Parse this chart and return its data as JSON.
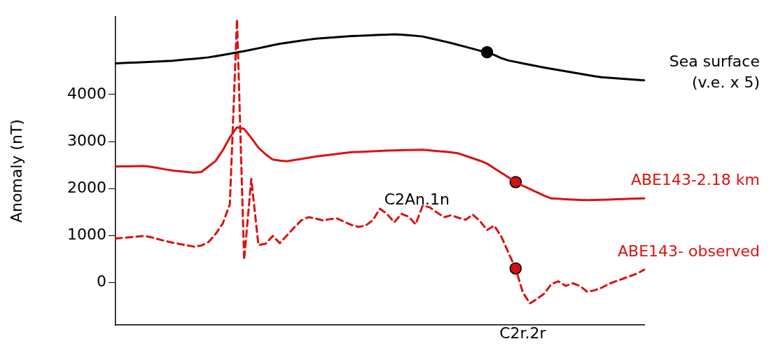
{
  "chart_data": {
    "type": "line",
    "ylabel": "Anomaly (nT)",
    "categories": [
      null,
      null,
      null,
      null,
      null,
      null,
      null,
      null,
      null,
      null,
      null,
      null,
      null,
      null,
      null,
      null,
      null,
      null,
      null,
      null,
      null,
      null,
      null,
      null,
      null,
      null,
      null,
      null,
      null,
      null,
      null,
      null,
      null,
      null,
      null,
      null,
      null,
      null,
      null,
      null,
      null,
      null,
      null,
      null,
      null,
      null,
      null,
      null,
      null,
      null,
      null,
      null,
      null,
      null,
      null,
      null,
      null,
      null,
      null,
      null,
      null,
      null,
      null,
      null,
      null,
      null,
      null,
      null,
      null,
      null,
      null,
      null,
      null,
      null,
      null
    ],
    "ylim": [
      -900,
      5650
    ],
    "yticks": [
      0,
      1000,
      2000,
      3000,
      4000
    ],
    "tick_labels": "y",
    "grid": false,
    "legend": false,
    "series": [
      {
        "name": "Sea surface (v.e. x 5)",
        "type": "line",
        "color": "#000000",
        "line_style": "solid",
        "values": [
          4662,
          4669,
          4676,
          4683,
          4690,
          4697,
          4703,
          4710,
          4719,
          4733,
          4747,
          4760,
          4774,
          4791,
          4815,
          4842,
          4868,
          4896,
          4922,
          4953,
          4985,
          5017,
          5050,
          5079,
          5102,
          5123,
          5145,
          5167,
          5188,
          5199,
          5210,
          5221,
          5232,
          5242,
          5249,
          5255,
          5261,
          5268,
          5273,
          5280,
          5273,
          5261,
          5249,
          5234,
          5199,
          5165,
          5130,
          5094,
          5054,
          5014,
          4974,
          4932,
          4901,
          4844,
          4774,
          4724,
          4694,
          4664,
          4633,
          4604,
          4574,
          4546,
          4521,
          4496,
          4469,
          4444,
          4418,
          4392,
          4370,
          4359,
          4347,
          4334,
          4323,
          4312,
          4303
        ]
      },
      {
        "name": "ABE143-2.18 km",
        "type": "line",
        "color": "#dd1111",
        "line_style": "solid",
        "values": [
          2469,
          2472,
          2475,
          2478,
          2482,
          2463,
          2435,
          2408,
          2383,
          2369,
          2355,
          2341,
          2354,
          2469,
          2586,
          2813,
          3089,
          3304,
          3269,
          3079,
          2868,
          2730,
          2617,
          2596,
          2582,
          2607,
          2631,
          2657,
          2681,
          2700,
          2718,
          2737,
          2757,
          2774,
          2780,
          2787,
          2794,
          2801,
          2808,
          2813,
          2817,
          2820,
          2824,
          2826,
          2812,
          2799,
          2785,
          2770,
          2748,
          2697,
          2645,
          2593,
          2531,
          2433,
          2336,
          2237,
          2139,
          2060,
          1990,
          1920,
          1849,
          1791,
          1783,
          1774,
          1766,
          1758,
          1753,
          1757,
          1762,
          1767,
          1772,
          1777,
          1783,
          1788,
          1793
        ]
      },
      {
        "name": "ABE143- observed",
        "type": "line",
        "color": "#dd1111",
        "line_style": "dashed",
        "values": [
          938,
          952,
          966,
          979,
          993,
          966,
          924,
          883,
          849,
          821,
          794,
          766,
          790,
          862,
          1034,
          1255,
          1669,
          5600,
          483,
          2207,
          800,
          828,
          993,
          841,
          1007,
          1172,
          1324,
          1393,
          1365,
          1324,
          1351,
          1365,
          1296,
          1227,
          1186,
          1214,
          1324,
          1572,
          1462,
          1282,
          1462,
          1407,
          1241,
          1641,
          1600,
          1490,
          1393,
          1434,
          1379,
          1338,
          1448,
          1310,
          1117,
          1214,
          979,
          634,
          303,
          -207,
          -441,
          -345,
          -234,
          -28,
          28,
          -69,
          -14,
          -69,
          -193,
          -165,
          -110,
          -28,
          28,
          83,
          138,
          193,
          276
        ]
      },
      {
        "type": "scatter",
        "marker": "circle",
        "color": "#000000",
        "values": [
          null,
          null,
          null,
          null,
          null,
          null,
          null,
          null,
          null,
          null,
          null,
          null,
          null,
          null,
          null,
          null,
          null,
          null,
          null,
          null,
          null,
          null,
          null,
          null,
          null,
          null,
          null,
          null,
          null,
          null,
          null,
          null,
          null,
          null,
          null,
          null,
          null,
          null,
          null,
          null,
          null,
          null,
          null,
          null,
          null,
          null,
          null,
          null,
          null,
          null,
          null,
          null,
          4901,
          null,
          null,
          null,
          null,
          null,
          null,
          null,
          null,
          null,
          null,
          null,
          null,
          null,
          null,
          null,
          null,
          null,
          null,
          null,
          null,
          null,
          null
        ]
      },
      {
        "type": "scatter",
        "marker": "circle",
        "color": "#cc1111",
        "values": [
          null,
          null,
          null,
          null,
          null,
          null,
          null,
          null,
          null,
          null,
          null,
          null,
          null,
          null,
          null,
          null,
          null,
          null,
          null,
          null,
          null,
          null,
          null,
          null,
          null,
          null,
          null,
          null,
          null,
          null,
          null,
          null,
          null,
          null,
          null,
          null,
          null,
          null,
          null,
          null,
          null,
          null,
          null,
          null,
          null,
          null,
          null,
          null,
          null,
          null,
          null,
          null,
          null,
          null,
          null,
          null,
          2139,
          null,
          null,
          null,
          null,
          null,
          null,
          null,
          null,
          null,
          null,
          null,
          null,
          null,
          null,
          null,
          null,
          null,
          null
        ]
      },
      {
        "type": "scatter",
        "marker": "circle",
        "color": "#cc1111",
        "values": [
          null,
          null,
          null,
          null,
          null,
          null,
          null,
          null,
          null,
          null,
          null,
          null,
          null,
          null,
          null,
          null,
          null,
          null,
          null,
          null,
          null,
          null,
          null,
          null,
          null,
          null,
          null,
          null,
          null,
          null,
          null,
          null,
          null,
          null,
          null,
          null,
          null,
          null,
          null,
          null,
          null,
          null,
          null,
          null,
          null,
          null,
          null,
          null,
          null,
          null,
          null,
          null,
          null,
          null,
          null,
          null,
          303,
          null,
          null,
          null,
          null,
          null,
          null,
          null,
          null,
          null,
          null,
          null,
          null,
          null,
          null,
          null,
          null,
          null,
          null
        ]
      }
    ],
    "annotations": [
      "C2An.1n",
      "C2r.2r"
    ]
  }
}
